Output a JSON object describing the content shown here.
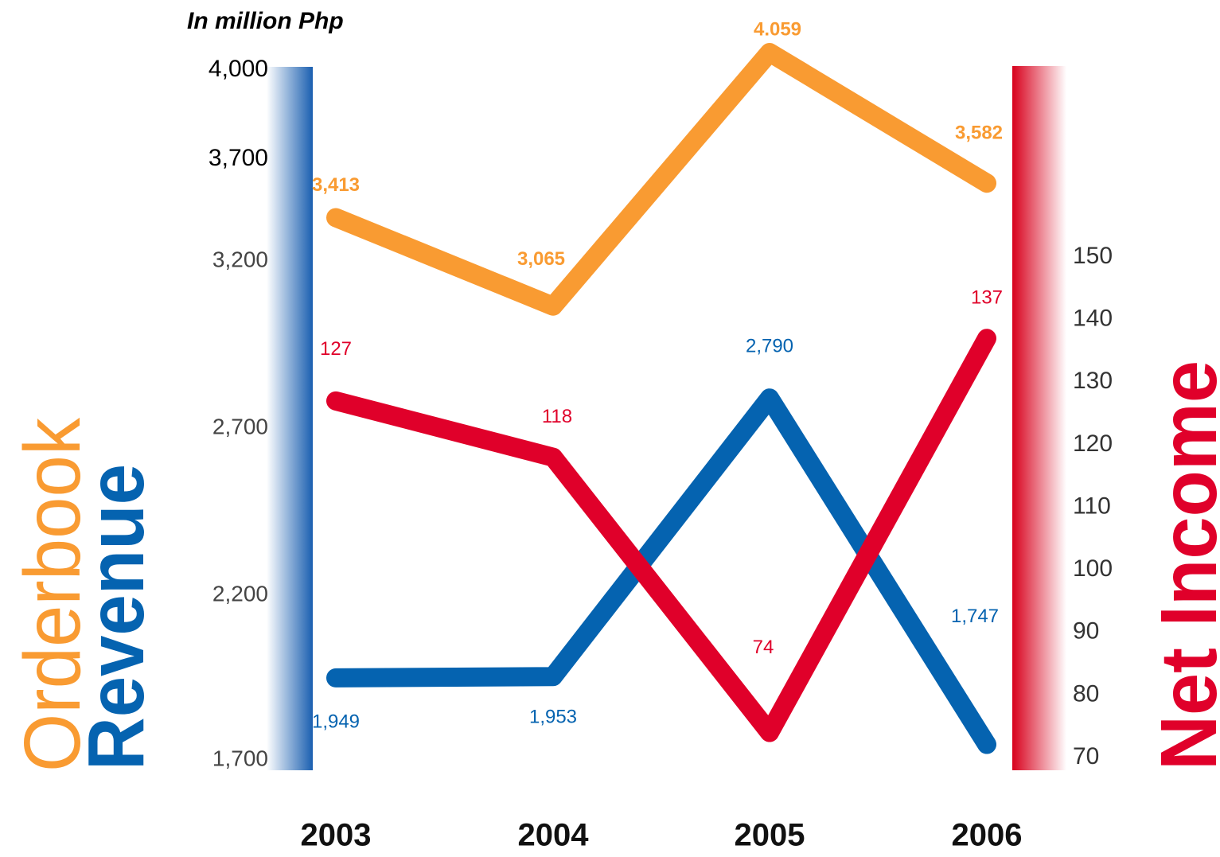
{
  "chart_data": {
    "type": "line",
    "subtitle": "In million Php",
    "categories": [
      "2003",
      "2004",
      "2005",
      "2006"
    ],
    "series": [
      {
        "name": "Orderbook",
        "color": "#f99b32",
        "values": [
          3413,
          3065,
          4059,
          3582
        ],
        "value_labels": [
          "3,413",
          "3,065",
          "4.059",
          "3,582"
        ]
      },
      {
        "name": "Revenue",
        "color": "#0563b0",
        "values": [
          1949,
          1953,
          2790,
          1747
        ],
        "value_labels": [
          "1,949",
          "1,953",
          "2,790",
          "1,747"
        ]
      },
      {
        "name": "Net Income",
        "color": "#e0002a",
        "axis": "y2",
        "values": [
          127,
          118,
          74,
          137
        ]
      }
    ],
    "ylim": [
      1700,
      4000
    ],
    "yticks": [
      {
        "value": 1700,
        "label": "1,700"
      },
      {
        "value": 2200,
        "label": "2,200"
      },
      {
        "value": 2700,
        "label": "2,700"
      },
      {
        "value": 3200,
        "label": "3,200"
      },
      {
        "value": 3700,
        "label": "3,700"
      },
      {
        "value": 4000,
        "label": "4,000"
      }
    ],
    "y2lim": [
      70,
      150
    ],
    "y2ticks": [
      70,
      80,
      90,
      100,
      110,
      120,
      130,
      140,
      150
    ]
  }
}
